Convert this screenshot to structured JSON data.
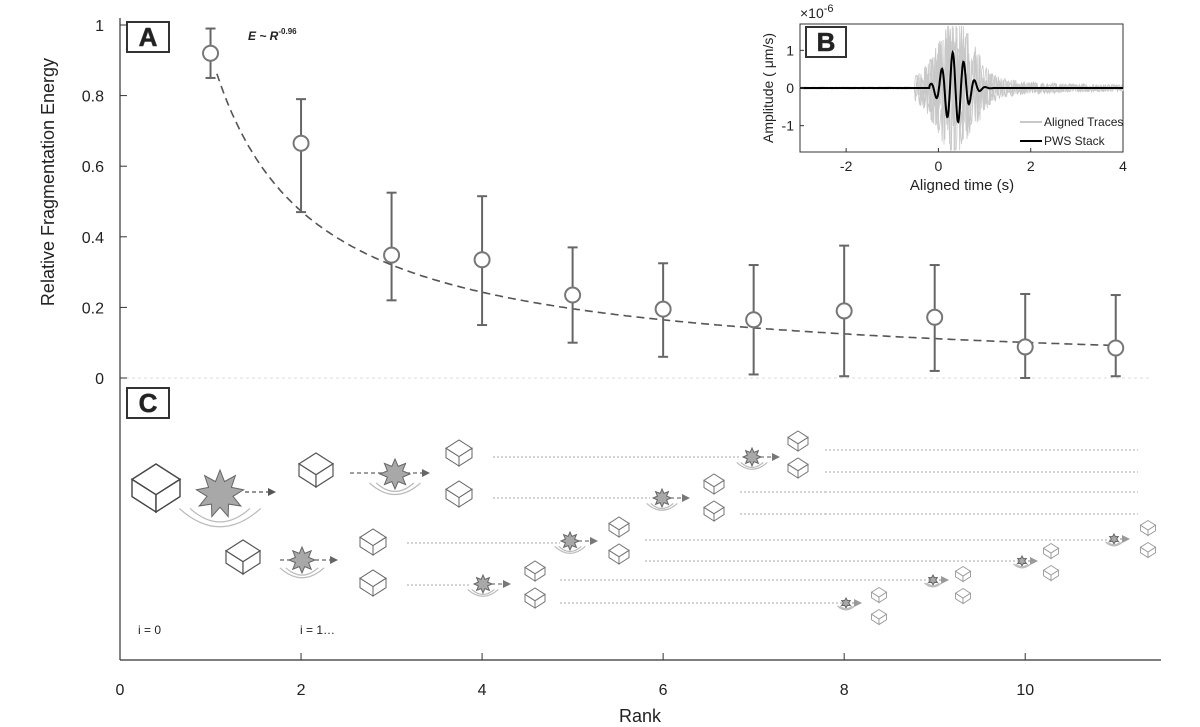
{
  "chart_data": [
    {
      "panel_label": "A",
      "type": "scatter",
      "xlabel": "Rank",
      "ylabel": "Relative Fragmentation Energy",
      "xlim": [
        0,
        11.5
      ],
      "ylim": [
        0,
        1
      ],
      "xticks": [
        "0",
        "2",
        "4",
        "6",
        "8",
        "10"
      ],
      "yticks": [
        "0",
        "0.2",
        "0.4",
        "0.6",
        "0.8",
        "1"
      ],
      "fit_label": {
        "prefix": "E ~ R",
        "exponent": "-0.96"
      },
      "fit": {
        "coefficient": 0.92,
        "exponent": -0.96
      },
      "points": [
        {
          "x": 1,
          "y": 0.92,
          "lo": 0.85,
          "hi": 0.99
        },
        {
          "x": 2,
          "y": 0.665,
          "lo": 0.47,
          "hi": 0.79
        },
        {
          "x": 3,
          "y": 0.348,
          "lo": 0.22,
          "hi": 0.525
        },
        {
          "x": 4,
          "y": 0.335,
          "lo": 0.15,
          "hi": 0.515
        },
        {
          "x": 5,
          "y": 0.235,
          "lo": 0.1,
          "hi": 0.37
        },
        {
          "x": 6,
          "y": 0.195,
          "lo": 0.06,
          "hi": 0.325
        },
        {
          "x": 7,
          "y": 0.165,
          "lo": 0.01,
          "hi": 0.32
        },
        {
          "x": 8,
          "y": 0.19,
          "lo": 0.005,
          "hi": 0.375
        },
        {
          "x": 9,
          "y": 0.172,
          "lo": 0.02,
          "hi": 0.32
        },
        {
          "x": 10,
          "y": 0.088,
          "lo": 0.0,
          "hi": 0.238
        },
        {
          "x": 11,
          "y": 0.085,
          "lo": 0.005,
          "hi": 0.235
        }
      ]
    },
    {
      "panel_label": "B",
      "type": "line",
      "xlabel": "Aligned time (s)",
      "ylabel": "Amplitude (  μm/s)",
      "scale_label": {
        "base": "×10",
        "exponent": "-6"
      },
      "xlim": [
        -3,
        4
      ],
      "ylim": [
        -1.7,
        1.7
      ],
      "xticks": [
        "-2",
        "0",
        "2",
        "4"
      ],
      "yticks": [
        "-1",
        "0",
        "1"
      ],
      "legend": [
        "Aligned Traces",
        "PWS Stack"
      ],
      "legend_position": "bottom-right",
      "series": [
        {
          "name": "Aligned Traces",
          "color": "#c8c8c8"
        },
        {
          "name": "PWS Stack",
          "color": "#000000"
        }
      ]
    }
  ],
  "panel_c": {
    "label": "C",
    "captions": [
      "i = 0",
      "i = 1…"
    ]
  }
}
